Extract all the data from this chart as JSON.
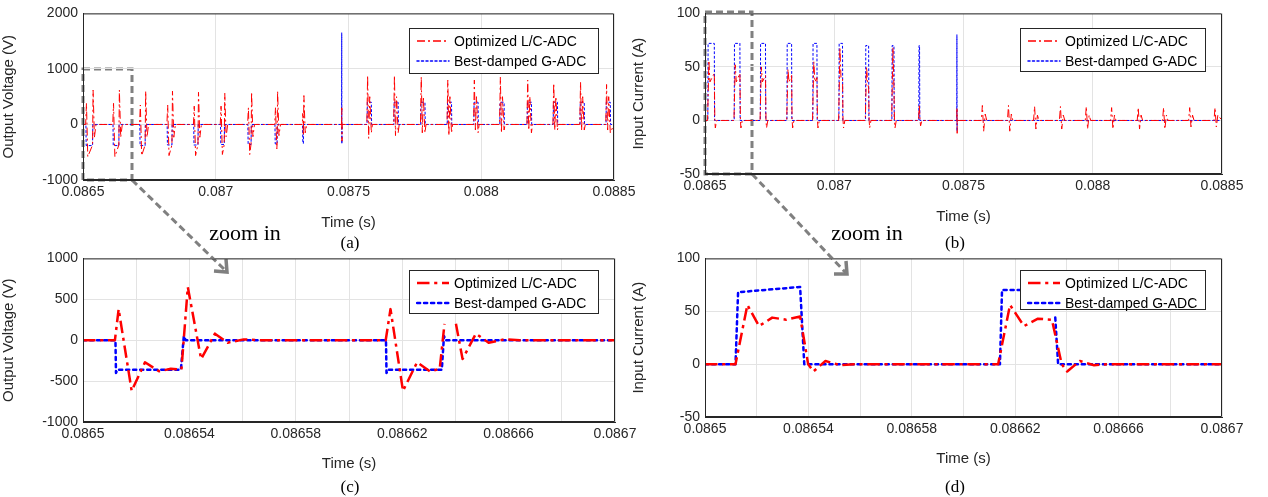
{
  "chart_data": [
    {
      "type": "line",
      "xlabel": "Time (s)",
      "ylabel": "Output Voltage (V)",
      "annotations": [
        "zoom in",
        "(a)"
      ],
      "xlim": [
        0.0865,
        0.0885
      ],
      "ylim": [
        -1000,
        2000
      ],
      "xticks": [
        0.0865,
        0.087,
        0.0875,
        0.088,
        0.0885
      ],
      "yticks": [
        -1000,
        0,
        1000,
        2000
      ],
      "grid": true,
      "legend": "top right",
      "series": [
        {
          "name": "Optimized L/C-ADC",
          "color": "#ff0000",
          "line_style": "dashed",
          "x": [
            0.0865,
            0.08651,
            0.086513,
            0.086518,
            0.086536,
            0.086538,
            0.086543,
            0.086549,
            0.086612,
            0.086615,
            0.08662,
            0.086635,
            0.086637,
            0.086642,
            0.086648,
            0.086713,
            0.086716,
            0.086721,
            0.086734,
            0.086736,
            0.086741,
            0.086747,
            0.086816,
            0.086819,
            0.086824,
            0.086835,
            0.086837,
            0.086842,
            0.086848,
            0.086916,
            0.086919,
            0.086924,
            0.086933,
            0.086935,
            0.08694,
            0.086946,
            0.087017,
            0.08702,
            0.087025,
            0.087032,
            0.087034,
            0.087039,
            0.087045,
            0.08712,
            0.087123,
            0.087128,
            0.087133,
            0.087135,
            0.08714,
            0.087146,
            0.087222,
            0.087225,
            0.08723,
            0.087231,
            0.087233,
            0.087238,
            0.087244,
            0.087326,
            0.087328,
            0.08733,
            0.087332,
            0.087337,
            0.087343,
            0.087474,
            0.0874748,
            0.0874755,
            0.087476,
            0.087569,
            0.087572,
            0.087576,
            0.08758,
            0.087586,
            0.08759,
            0.08767,
            0.087673,
            0.087677,
            0.087681,
            0.087687,
            0.087691,
            0.087771,
            0.087774,
            0.087778,
            0.087782,
            0.087788,
            0.087792,
            0.087871,
            0.087874,
            0.087878,
            0.087882,
            0.087888,
            0.087892,
            0.087971,
            0.087974,
            0.087978,
            0.087982,
            0.087988,
            0.087992,
            0.088069,
            0.088072,
            0.088076,
            0.08808,
            0.088086,
            0.08809,
            0.088172,
            0.088175,
            0.088179,
            0.088183,
            0.088189,
            0.088193,
            0.08827,
            0.088273,
            0.088277,
            0.088281,
            0.088287,
            0.088291,
            0.088371,
            0.088374,
            0.088378,
            0.088382,
            0.088388,
            0.088392,
            0.088469,
            0.088472,
            0.088476,
            0.08848,
            0.088486,
            0.0885
          ],
          "values": [
            0,
            0,
            380,
            -580,
            -370,
            620,
            -230,
            0,
            0,
            380,
            -580,
            -370,
            620,
            -230,
            0,
            0,
            350,
            -560,
            -370,
            600,
            -230,
            0,
            0,
            350,
            -560,
            -370,
            600,
            -230,
            0,
            0,
            330,
            -560,
            -360,
            580,
            -230,
            0,
            0,
            330,
            -540,
            -360,
            560,
            -220,
            0,
            0,
            300,
            -540,
            -350,
            580,
            -220,
            0,
            0,
            300,
            -440,
            -350,
            600,
            -200,
            0,
            0,
            200,
            -200,
            520,
            -150,
            0,
            0,
            300,
            -300,
            0,
            0,
            880,
            -250,
            500,
            -150,
            0,
            0,
            880,
            -200,
            500,
            -150,
            0,
            0,
            860,
            -150,
            500,
            -150,
            0,
            0,
            800,
            -200,
            500,
            -150,
            0,
            0,
            800,
            -100,
            500,
            -150,
            0,
            0,
            850,
            -150,
            500,
            -100,
            0,
            0,
            800,
            -100,
            500,
            -150,
            0,
            0,
            740,
            -100,
            500,
            -100,
            0,
            0,
            760,
            -100,
            500,
            -100,
            0,
            0,
            720,
            -100,
            500,
            -150,
            0
          ]
        },
        {
          "name": "Best-damped G-ADC",
          "color": "#0000ff",
          "line_style": "dotted",
          "x": [
            0.0865,
            0.086511,
            0.086512,
            0.086536,
            0.086537,
            0.086613,
            0.086614,
            0.086635,
            0.086636,
            0.086714,
            0.086715,
            0.086734,
            0.086735,
            0.086817,
            0.086818,
            0.086835,
            0.086836,
            0.086917,
            0.086918,
            0.086933,
            0.086934,
            0.087018,
            0.087019,
            0.087032,
            0.087033,
            0.087121,
            0.087122,
            0.087133,
            0.087134,
            0.087223,
            0.087224,
            0.087231,
            0.087232,
            0.087327,
            0.087328,
            0.08733,
            0.087331,
            0.087474,
            0.0874745,
            0.087475,
            0.0874755,
            0.08757,
            0.087571,
            0.087586,
            0.087587,
            0.087671,
            0.087672,
            0.087687,
            0.087688,
            0.087772,
            0.087773,
            0.087788,
            0.087789,
            0.087872,
            0.087873,
            0.087888,
            0.087889,
            0.087972,
            0.087973,
            0.087988,
            0.087989,
            0.08807,
            0.088071,
            0.088086,
            0.088087,
            0.088173,
            0.088174,
            0.088189,
            0.08819,
            0.088271,
            0.088272,
            0.088287,
            0.088288,
            0.088372,
            0.088373,
            0.088388,
            0.088389,
            0.08847,
            0.088471,
            0.088486,
            0.088487,
            0.0885
          ],
          "values": [
            0,
            0,
            -380,
            -380,
            0,
            0,
            -380,
            -380,
            0,
            0,
            -380,
            -380,
            0,
            0,
            -370,
            -370,
            0,
            0,
            -370,
            -370,
            0,
            0,
            -360,
            -360,
            0,
            0,
            -360,
            -360,
            0,
            0,
            -350,
            -350,
            0,
            0,
            -340,
            -340,
            0,
            0,
            1650,
            -350,
            0,
            0,
            400,
            400,
            0,
            0,
            400,
            400,
            0,
            0,
            400,
            400,
            0,
            0,
            400,
            400,
            0,
            0,
            400,
            400,
            0,
            0,
            400,
            400,
            0,
            0,
            400,
            400,
            0,
            0,
            400,
            400,
            0,
            0,
            400,
            400,
            0,
            0,
            400,
            400,
            0,
            0
          ]
        }
      ]
    },
    {
      "type": "line",
      "xlabel": "Time (s)",
      "ylabel": "Input Current (A)",
      "annotations": [
        "zoom in",
        "(b)"
      ],
      "xlim": [
        0.0865,
        0.0885
      ],
      "ylim": [
        -50,
        100
      ],
      "xticks": [
        0.0865,
        0.087,
        0.0875,
        0.088,
        0.0885
      ],
      "yticks": [
        -50,
        0,
        50,
        100
      ],
      "grid": true,
      "legend": "top right",
      "series": [
        {
          "name": "Optimized L/C-ADC",
          "color": "#ff0000",
          "line_style": "dashed",
          "x": [
            0.0865,
            0.08651,
            0.086515,
            0.086519,
            0.086536,
            0.086538,
            0.08654,
            0.086545,
            0.086612,
            0.086617,
            0.086621,
            0.086635,
            0.086637,
            0.086639,
            0.086644,
            0.086713,
            0.086718,
            0.086722,
            0.086734,
            0.086736,
            0.086738,
            0.086743,
            0.086816,
            0.086821,
            0.086825,
            0.086835,
            0.086837,
            0.086839,
            0.086844,
            0.086916,
            0.086921,
            0.086925,
            0.086933,
            0.086935,
            0.086937,
            0.086942,
            0.087017,
            0.087022,
            0.087026,
            0.087032,
            0.087034,
            0.087036,
            0.087041,
            0.08712,
            0.087125,
            0.087129,
            0.087133,
            0.087135,
            0.087137,
            0.087142,
            0.087222,
            0.087227,
            0.087231,
            0.087233,
            0.087235,
            0.08724,
            0.087326,
            0.087329,
            0.087332,
            0.087334,
            0.087339,
            0.087474,
            0.0874748,
            0.0874755,
            0.087476,
            0.087569,
            0.087573,
            0.087578,
            0.087584,
            0.08759,
            0.08767,
            0.087674,
            0.087679,
            0.087685,
            0.087691,
            0.087771,
            0.087775,
            0.08778,
            0.087786,
            0.087792,
            0.087871,
            0.087875,
            0.08788,
            0.087886,
            0.087892,
            0.087971,
            0.087975,
            0.08798,
            0.087986,
            0.087992,
            0.088069,
            0.088073,
            0.088078,
            0.088084,
            0.08809,
            0.088172,
            0.088176,
            0.088181,
            0.088187,
            0.088193,
            0.08827,
            0.088274,
            0.088279,
            0.088285,
            0.088291,
            0.088371,
            0.088375,
            0.08838,
            0.088386,
            0.088392,
            0.088469,
            0.088473,
            0.088478,
            0.088484,
            0.0885
          ],
          "values": [
            0,
            0,
            56,
            36,
            44,
            0,
            -7,
            0,
            0,
            52,
            36,
            44,
            0,
            -7,
            0,
            0,
            50,
            36,
            42,
            0,
            -7,
            0,
            0,
            48,
            36,
            42,
            0,
            -7,
            0,
            0,
            55,
            36,
            40,
            0,
            -7,
            0,
            0,
            68,
            40,
            40,
            0,
            -7,
            0,
            0,
            50,
            36,
            30,
            0,
            -7,
            0,
            0,
            68,
            30,
            0,
            -7,
            0,
            0,
            15,
            0,
            -5,
            0,
            0,
            12,
            -12,
            0,
            0,
            14,
            -10,
            6,
            0,
            0,
            14,
            -10,
            6,
            0,
            0,
            13,
            -8,
            5,
            0,
            0,
            13,
            -8,
            5,
            0,
            0,
            13,
            -8,
            5,
            0,
            0,
            12,
            -8,
            5,
            0,
            0,
            12,
            -8,
            5,
            0,
            0,
            12,
            -8,
            5,
            0,
            0,
            12,
            -6,
            5,
            0,
            0,
            12,
            -6,
            5,
            0
          ]
        },
        {
          "name": "Best-damped G-ADC",
          "color": "#0000ff",
          "line_style": "dotted",
          "x": [
            0.0865,
            0.086511,
            0.086512,
            0.086536,
            0.086537,
            0.086613,
            0.086614,
            0.086635,
            0.086636,
            0.086714,
            0.086715,
            0.086734,
            0.086735,
            0.086817,
            0.086818,
            0.086835,
            0.086836,
            0.086917,
            0.086918,
            0.086933,
            0.086934,
            0.087018,
            0.087019,
            0.087032,
            0.087033,
            0.087121,
            0.087122,
            0.087133,
            0.087134,
            0.087223,
            0.087224,
            0.087231,
            0.087232,
            0.087327,
            0.087328,
            0.08733,
            0.087331,
            0.087474,
            0.0874745,
            0.087475,
            0.0874755,
            0.0885
          ],
          "values": [
            0,
            0,
            72,
            72,
            0,
            0,
            72,
            72,
            0,
            0,
            72,
            72,
            0,
            0,
            72,
            72,
            0,
            0,
            72,
            72,
            0,
            0,
            72,
            72,
            0,
            0,
            70,
            70,
            0,
            0,
            70,
            70,
            0,
            0,
            70,
            70,
            0,
            0,
            80,
            -10,
            0,
            0
          ]
        }
      ]
    },
    {
      "type": "line",
      "xlabel": "Time (s)",
      "ylabel": "Output Voltage (V)",
      "annotations": [
        "(c)"
      ],
      "xlim": [
        0.0865,
        0.0867
      ],
      "ylim": [
        -1000,
        1000
      ],
      "xticks": [
        0.0865,
        {
          "value": 0.08652,
          "label": null
        },
        0.08654,
        {
          "value": 0.08656,
          "label": null
        },
        0.08658,
        {
          "value": 0.0866,
          "label": null
        },
        0.08662,
        {
          "value": 0.08664,
          "label": null
        },
        0.08666,
        {
          "value": 0.08668,
          "label": null
        },
        0.0867
      ],
      "yticks": [
        -1000,
        -500,
        0,
        500,
        1000
      ],
      "grid": true,
      "legend": "top right",
      "series": [
        {
          "name": "Optimized L/C-ADC",
          "color": "#ff0000",
          "line_style": "dashed",
          "x": [
            0.0865,
            0.086512,
            0.0865134,
            0.0865183,
            0.0865233,
            0.0865286,
            0.086533,
            0.086537,
            0.0865394,
            0.0865444,
            0.0865496,
            0.0865544,
            0.0865604,
            0.0865665,
            0.0866138,
            0.0866156,
            0.0866203,
            0.0866256,
            0.0866304,
            0.0866341,
            0.0866359,
            0.086638,
            0.0866402,
            0.0866427,
            0.0866477,
            0.0866525,
            0.0866585,
            0.0866642,
            0.0867
          ],
          "values": [
            0,
            0,
            380,
            -620,
            -270,
            -380,
            -350,
            -360,
            650,
            -230,
            80,
            -30,
            10,
            0,
            0,
            380,
            -620,
            -270,
            -380,
            -350,
            200,
            null,
            200,
            -230,
            80,
            -30,
            10,
            0,
            0
          ]
        },
        {
          "name": "Best-damped G-ADC",
          "color": "#0000ff",
          "line_style": "dotted",
          "x": [
            0.0865,
            0.0865122,
            0.0865124,
            0.086513,
            0.0865368,
            0.0865379,
            0.0865386,
            0.0866139,
            0.0866141,
            0.0866147,
            0.0866349,
            0.0866357,
            0.0866364,
            0.0867
          ],
          "values": [
            0,
            0,
            -400,
            -360,
            -360,
            50,
            0,
            0,
            -400,
            -360,
            -360,
            50,
            0,
            0
          ]
        }
      ]
    },
    {
      "type": "line",
      "xlabel": "Time (s)",
      "ylabel": "Input Current (A)",
      "annotations": [
        "(d)"
      ],
      "xlim": [
        0.0865,
        0.0867
      ],
      "ylim": [
        -50,
        100
      ],
      "xticks": [
        0.0865,
        {
          "value": 0.08652,
          "label": null
        },
        0.08654,
        {
          "value": 0.08656,
          "label": null
        },
        0.08658,
        {
          "value": 0.0866,
          "label": null
        },
        0.08662,
        {
          "value": 0.08664,
          "label": null
        },
        0.08666,
        {
          "value": 0.08668,
          "label": null
        },
        0.0867
      ],
      "yticks": [
        -50,
        0,
        50,
        100
      ],
      "grid": true,
      "legend": "top right",
      "series": [
        {
          "name": "Optimized L/C-ADC",
          "color": "#ff0000",
          "line_style": "dashed",
          "x": [
            0.0865,
            0.0865118,
            0.0865164,
            0.0865209,
            0.086526,
            0.0865314,
            0.0865368,
            0.0865399,
            0.0865419,
            0.0865466,
            0.0865523,
            0.0865577,
            0.0866134,
            0.086618,
            0.0866234,
            0.0866288,
            0.0866342,
            0.086638,
            0.0866401,
            0.086645,
            0.0866505,
            0.0866567,
            0.0867
          ],
          "values": [
            0,
            0,
            56,
            36,
            44,
            42,
            45,
            0,
            -7,
            3,
            -1,
            0,
            0,
            56,
            36,
            43,
            42,
            0,
            -7,
            3,
            -1,
            0,
            0
          ]
        },
        {
          "name": "Best-damped G-ADC",
          "color": "#0000ff",
          "line_style": "dotted",
          "x": [
            0.0865,
            0.0865118,
            0.0865128,
            0.0865368,
            0.0865384,
            0.0866141,
            0.0866149,
            0.0866225,
            0.086629,
            0.0866355,
            0.0866366,
            0.0867
          ],
          "values": [
            0,
            0,
            68,
            73,
            0,
            0,
            70,
            70,
            null,
            44,
            0,
            0
          ]
        }
      ]
    }
  ]
}
